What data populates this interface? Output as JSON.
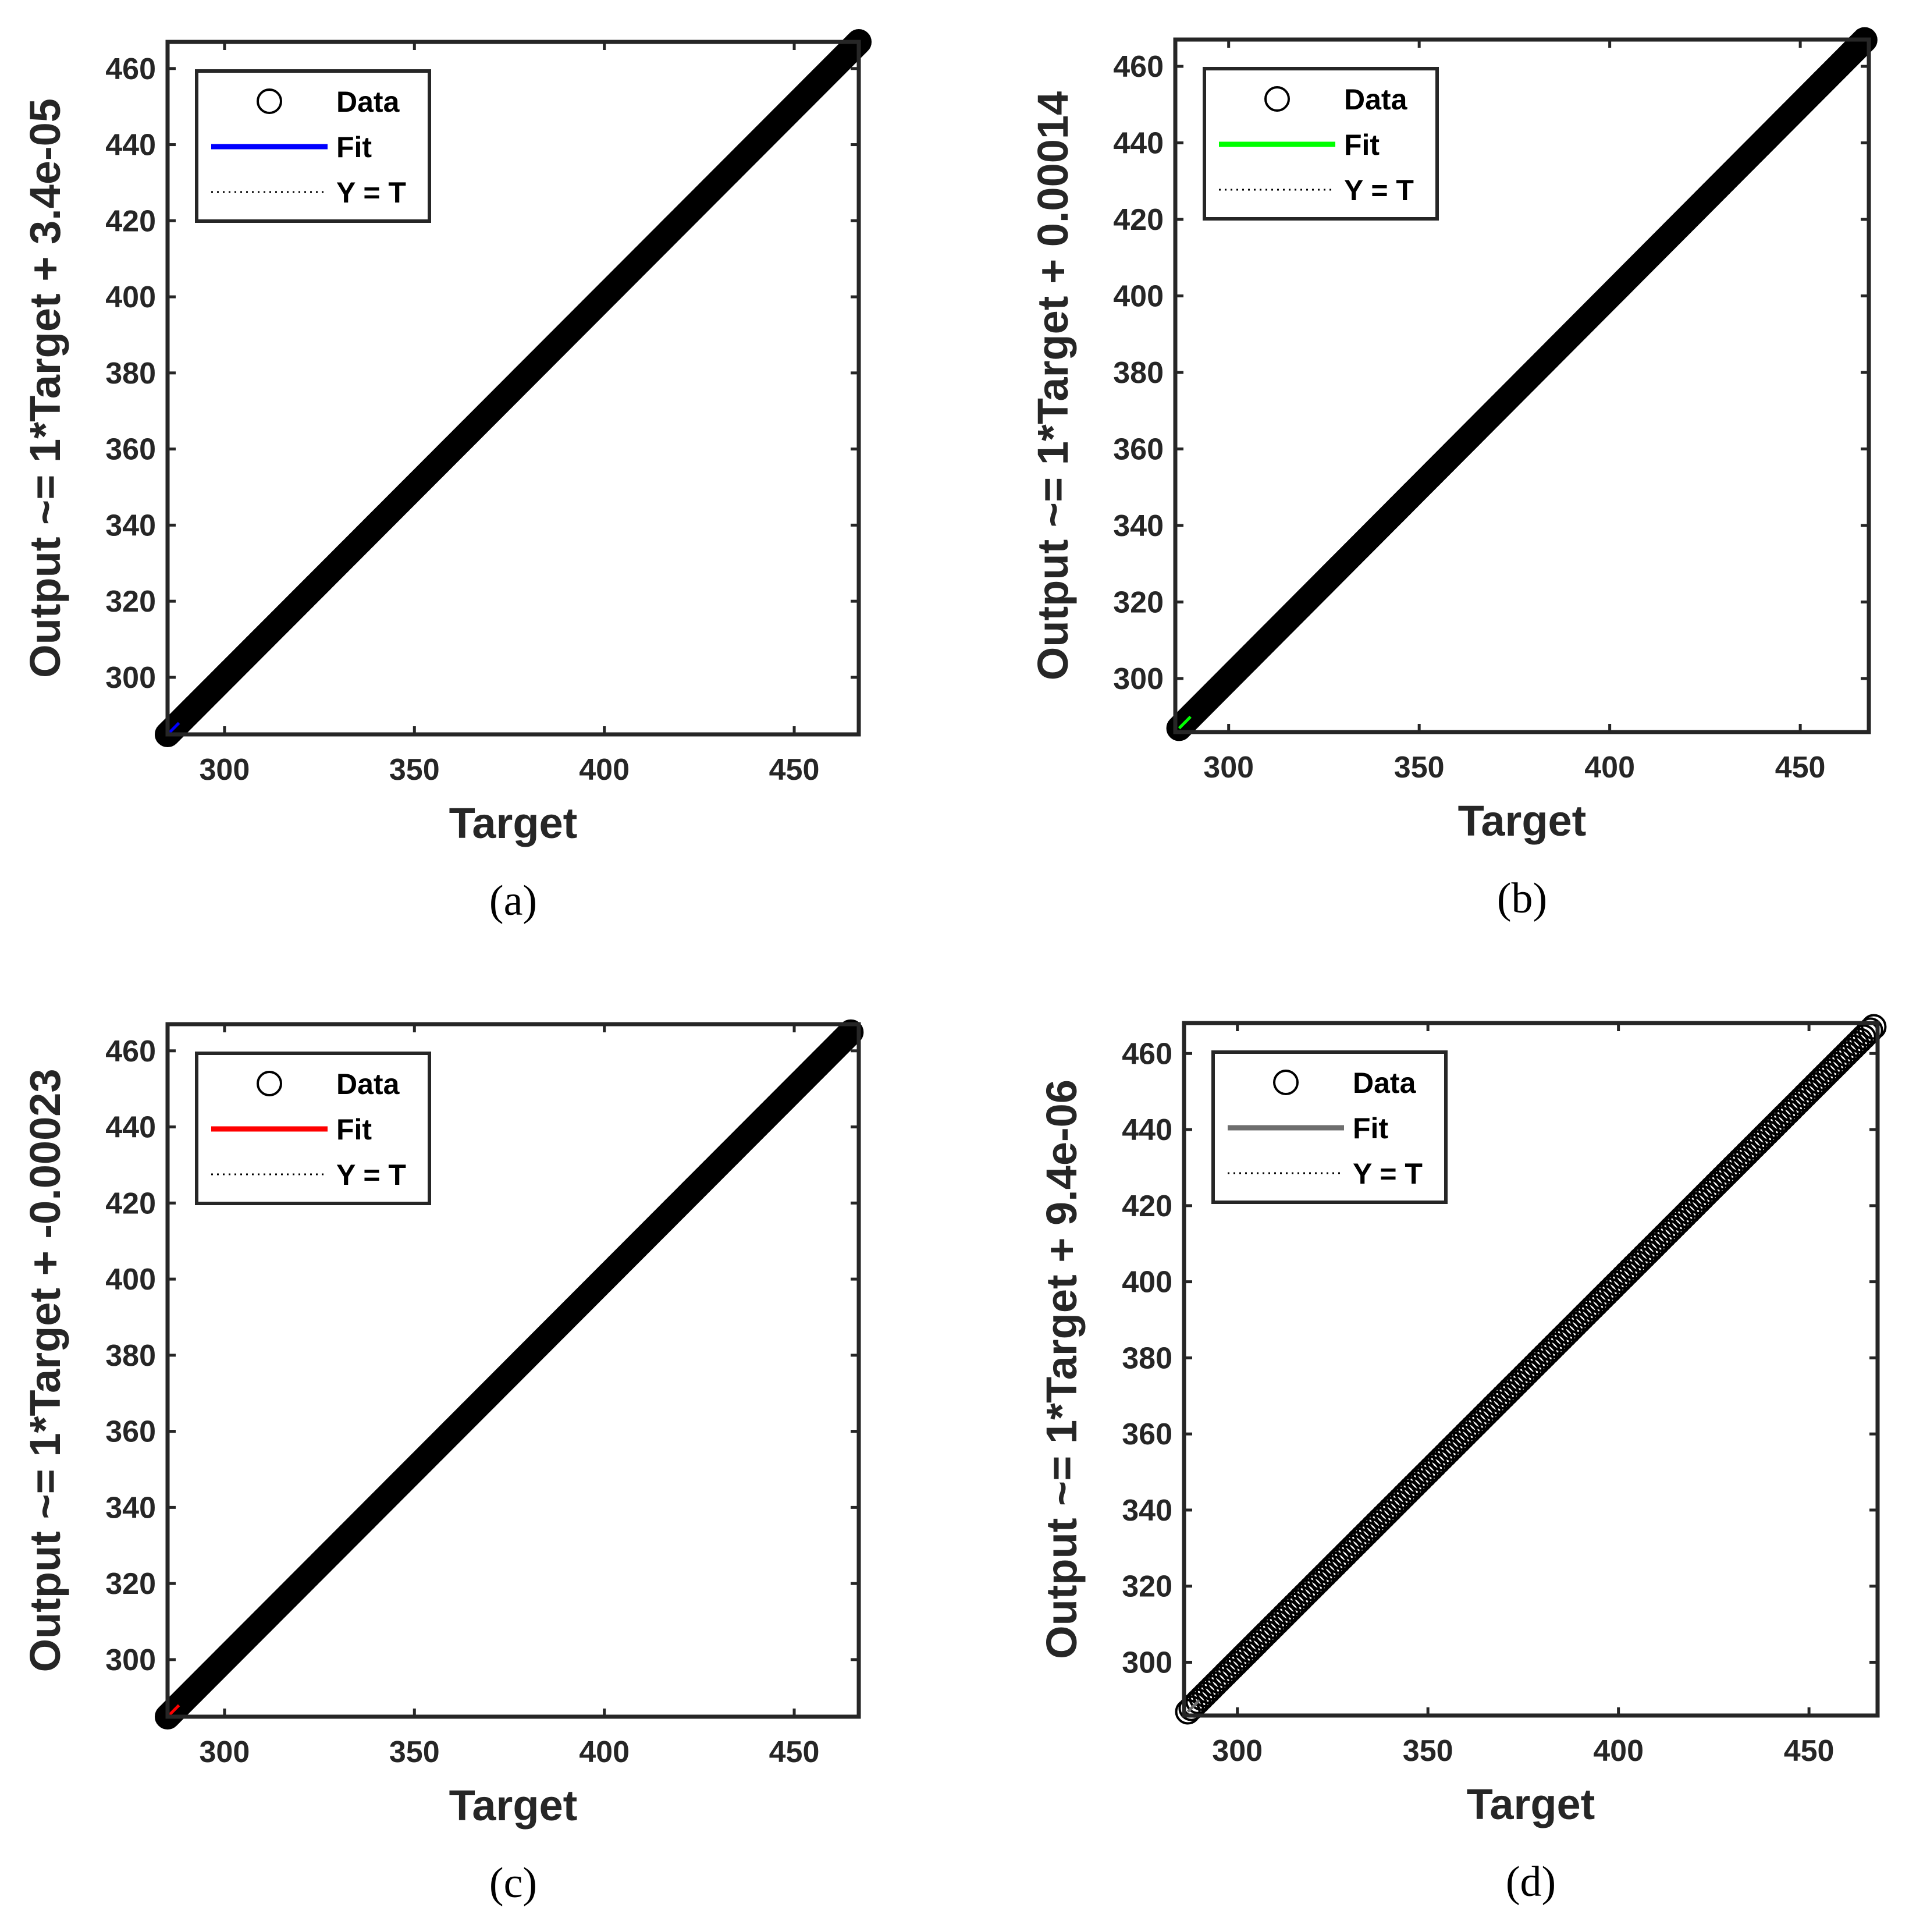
{
  "colors": {
    "axis": "#262626",
    "data_marker": "#000000",
    "reference_line": "#000000"
  },
  "chart_data": [
    {
      "type": "scatter",
      "panel_label": "(a)",
      "xlabel": "Target",
      "ylabel": "Output ~= 1*Target + 3.4e-05",
      "xlim": [
        285,
        467
      ],
      "ylim": [
        285,
        467
      ],
      "xticks": [
        300,
        350,
        400,
        450
      ],
      "yticks": [
        300,
        320,
        340,
        360,
        380,
        400,
        420,
        440,
        460
      ],
      "fit": {
        "slope": 1,
        "intercept": 3.4e-05,
        "color": "#0000ff"
      },
      "data_range": [
        285,
        467
      ],
      "marker_jitter": false,
      "legend": {
        "position": "top-left",
        "entries": [
          "Data",
          "Fit",
          "Y = T"
        ]
      }
    },
    {
      "type": "scatter",
      "panel_label": "(b)",
      "xlabel": "Target",
      "ylabel": "Output ~= 1*Target + 0.00014",
      "xlim": [
        286,
        468
      ],
      "ylim": [
        286,
        467
      ],
      "xticks": [
        300,
        350,
        400,
        450
      ],
      "yticks": [
        300,
        320,
        340,
        360,
        380,
        400,
        420,
        440,
        460
      ],
      "fit": {
        "slope": 1,
        "intercept": 0.00014,
        "color": "#00ff00"
      },
      "data_range": [
        287,
        467
      ],
      "marker_jitter": false,
      "legend": {
        "position": "top-left",
        "entries": [
          "Data",
          "Fit",
          "Y = T"
        ]
      }
    },
    {
      "type": "scatter",
      "panel_label": "(c)",
      "xlabel": "Target",
      "ylabel": "Output ~= 1*Target + -0.00023",
      "xlim": [
        285,
        467
      ],
      "ylim": [
        285,
        467
      ],
      "xticks": [
        300,
        350,
        400,
        450
      ],
      "yticks": [
        300,
        320,
        340,
        360,
        380,
        400,
        420,
        440,
        460
      ],
      "fit": {
        "slope": 1,
        "intercept": -0.00023,
        "color": "#ff0000"
      },
      "data_range": [
        285,
        465
      ],
      "marker_jitter": false,
      "legend": {
        "position": "top-left",
        "entries": [
          "Data",
          "Fit",
          "Y = T"
        ]
      }
    },
    {
      "type": "scatter",
      "panel_label": "(d)",
      "xlabel": "Target",
      "ylabel": "Output ~= 1*Target + 9.4e-06",
      "xlim": [
        286,
        468
      ],
      "ylim": [
        286,
        468
      ],
      "xticks": [
        300,
        350,
        400,
        450
      ],
      "yticks": [
        300,
        320,
        340,
        360,
        380,
        400,
        420,
        440,
        460
      ],
      "fit": {
        "slope": 1,
        "intercept": 9.4e-06,
        "color": "#6e6e6e"
      },
      "data_range": [
        287,
        467
      ],
      "marker_jitter": true,
      "legend": {
        "position": "top-left",
        "entries": [
          "Data",
          "Fit",
          "Y = T"
        ]
      }
    }
  ]
}
